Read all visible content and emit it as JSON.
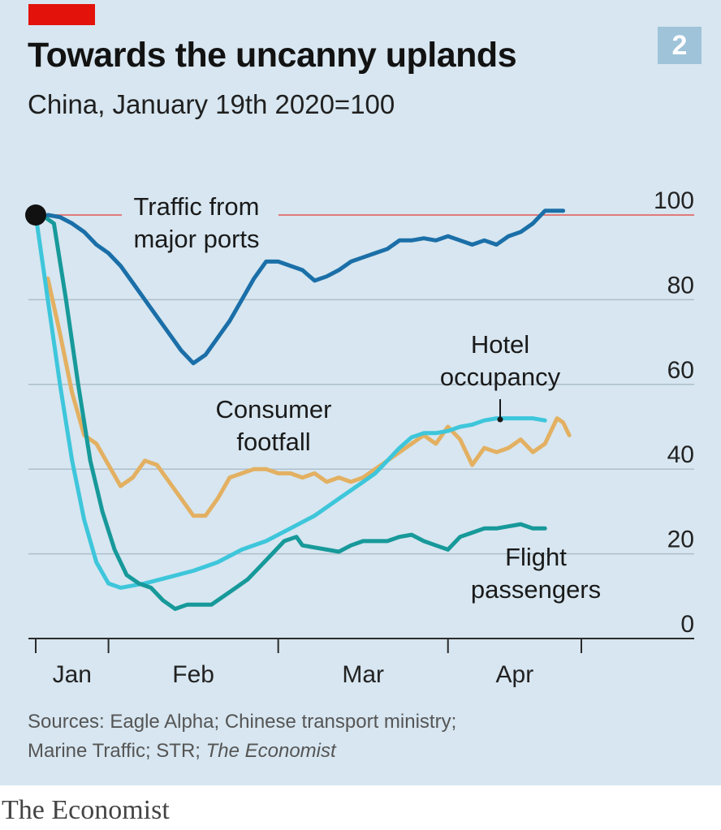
{
  "figure_number": "2",
  "sources": {
    "line1": "Sources: Eagle Alpha; Chinese transport ministry;",
    "line2_prefix": "Marine Traffic; STR; ",
    "line2_italic": "The Economist"
  },
  "footer": "The Economist",
  "colors": {
    "accent_red": "#e3120b",
    "reference_line": "#e07a7a",
    "traffic": "#1b6fa8",
    "consumer": "#e3b062",
    "hotel": "#3ec6db",
    "flight": "#17999a"
  },
  "chart_data": {
    "type": "line",
    "title": "Towards the uncanny uplands",
    "subtitle": "China, January 19th 2020=100",
    "xlabel": "",
    "ylabel": "",
    "ylim": [
      0,
      100
    ],
    "xlim": [
      0,
      90
    ],
    "x_units": "days since January 19th 2020",
    "y_ticks": [
      0,
      20,
      40,
      60,
      80,
      100
    ],
    "x_ticks": [
      0,
      12,
      40,
      68,
      90
    ],
    "x_tick_labels": [
      {
        "label": "Jan",
        "x": 6
      },
      {
        "label": "Feb",
        "x": 26
      },
      {
        "label": "Mar",
        "x": 54
      },
      {
        "label": "Apr",
        "x": 79
      }
    ],
    "reference_line": {
      "y": 100
    },
    "start_marker": {
      "x": 0,
      "y": 100
    },
    "series": [
      {
        "name": "Traffic from major ports",
        "label_lines": [
          "Traffic from",
          "major ports"
        ],
        "color_key": "traffic",
        "points": [
          [
            2,
            100
          ],
          [
            4,
            99.5
          ],
          [
            6,
            98
          ],
          [
            8,
            96
          ],
          [
            10,
            93
          ],
          [
            12,
            91
          ],
          [
            14,
            88
          ],
          [
            16,
            84
          ],
          [
            18,
            80
          ],
          [
            20,
            76
          ],
          [
            22,
            72
          ],
          [
            24,
            68
          ],
          [
            26,
            65
          ],
          [
            28,
            67
          ],
          [
            30,
            71
          ],
          [
            32,
            75
          ],
          [
            34,
            80
          ],
          [
            36,
            85
          ],
          [
            38,
            89
          ],
          [
            40,
            89
          ],
          [
            42,
            88
          ],
          [
            44,
            87
          ],
          [
            46,
            84.5
          ],
          [
            48,
            85.5
          ],
          [
            50,
            87
          ],
          [
            52,
            89
          ],
          [
            54,
            90
          ],
          [
            56,
            91
          ],
          [
            58,
            92
          ],
          [
            60,
            94
          ],
          [
            62,
            94
          ],
          [
            64,
            94.5
          ],
          [
            66,
            94
          ],
          [
            68,
            95
          ],
          [
            70,
            94
          ],
          [
            72,
            93
          ],
          [
            74,
            94
          ],
          [
            76,
            93
          ],
          [
            78,
            95
          ],
          [
            80,
            96
          ],
          [
            82,
            98
          ],
          [
            84,
            101
          ],
          [
            87,
            101
          ]
        ]
      },
      {
        "name": "Consumer footfall",
        "label_lines": [
          "Consumer",
          "footfall"
        ],
        "color_key": "consumer",
        "points": [
          [
            2,
            85
          ],
          [
            4,
            72
          ],
          [
            6,
            58
          ],
          [
            8,
            48
          ],
          [
            10,
            46
          ],
          [
            12,
            41
          ],
          [
            14,
            36
          ],
          [
            16,
            38
          ],
          [
            18,
            42
          ],
          [
            20,
            41
          ],
          [
            22,
            37
          ],
          [
            24,
            33
          ],
          [
            26,
            29
          ],
          [
            28,
            29
          ],
          [
            30,
            33
          ],
          [
            32,
            38
          ],
          [
            34,
            39
          ],
          [
            36,
            40
          ],
          [
            38,
            40
          ],
          [
            40,
            39
          ],
          [
            42,
            39
          ],
          [
            44,
            38
          ],
          [
            46,
            39
          ],
          [
            48,
            37
          ],
          [
            50,
            38
          ],
          [
            52,
            37
          ],
          [
            54,
            38
          ],
          [
            56,
            40
          ],
          [
            58,
            42
          ],
          [
            60,
            44
          ],
          [
            62,
            46
          ],
          [
            64,
            48
          ],
          [
            66,
            46
          ],
          [
            68,
            50
          ],
          [
            70,
            47
          ],
          [
            72,
            41
          ],
          [
            74,
            45
          ],
          [
            76,
            44
          ],
          [
            78,
            45
          ],
          [
            80,
            47
          ],
          [
            82,
            44
          ],
          [
            84,
            46
          ],
          [
            86,
            52
          ],
          [
            87,
            51
          ],
          [
            88,
            48
          ]
        ]
      },
      {
        "name": "Hotel occupancy",
        "label_lines": [
          "Hotel",
          "occupancy"
        ],
        "color_key": "hotel",
        "points": [
          [
            0,
            100
          ],
          [
            2,
            80
          ],
          [
            4,
            60
          ],
          [
            6,
            42
          ],
          [
            8,
            28
          ],
          [
            10,
            18
          ],
          [
            12,
            13
          ],
          [
            14,
            12
          ],
          [
            18,
            13
          ],
          [
            22,
            14.5
          ],
          [
            26,
            16
          ],
          [
            30,
            18
          ],
          [
            34,
            21
          ],
          [
            38,
            23
          ],
          [
            42,
            26
          ],
          [
            46,
            29
          ],
          [
            50,
            33
          ],
          [
            54,
            37
          ],
          [
            56,
            39
          ],
          [
            58,
            42
          ],
          [
            60,
            45
          ],
          [
            62,
            47.5
          ],
          [
            64,
            48.5
          ],
          [
            66,
            48.5
          ],
          [
            68,
            49
          ],
          [
            70,
            50
          ],
          [
            72,
            50.5
          ],
          [
            74,
            51.5
          ],
          [
            76,
            52
          ],
          [
            78,
            52
          ],
          [
            80,
            52
          ],
          [
            82,
            52
          ],
          [
            84,
            51.5
          ]
        ]
      },
      {
        "name": "Flight passengers",
        "label_lines": [
          "Flight",
          "passengers"
        ],
        "color_key": "flight",
        "points": [
          [
            1,
            100
          ],
          [
            3,
            98
          ],
          [
            5,
            80
          ],
          [
            7,
            60
          ],
          [
            9,
            42
          ],
          [
            11,
            30
          ],
          [
            13,
            21
          ],
          [
            15,
            15
          ],
          [
            17,
            13
          ],
          [
            19,
            12
          ],
          [
            21,
            9
          ],
          [
            23,
            7
          ],
          [
            25,
            8
          ],
          [
            27,
            8
          ],
          [
            29,
            8
          ],
          [
            31,
            10
          ],
          [
            33,
            12
          ],
          [
            35,
            14
          ],
          [
            37,
            17
          ],
          [
            39,
            20
          ],
          [
            41,
            23
          ],
          [
            43,
            24
          ],
          [
            44,
            22
          ],
          [
            46,
            21.5
          ],
          [
            48,
            21
          ],
          [
            50,
            20.5
          ],
          [
            52,
            22
          ],
          [
            54,
            23
          ],
          [
            56,
            23
          ],
          [
            58,
            23
          ],
          [
            60,
            24
          ],
          [
            62,
            24.5
          ],
          [
            64,
            23
          ],
          [
            66,
            22
          ],
          [
            68,
            21
          ],
          [
            70,
            24
          ],
          [
            72,
            25
          ],
          [
            74,
            26
          ],
          [
            76,
            26
          ],
          [
            78,
            26.5
          ],
          [
            80,
            27
          ],
          [
            82,
            26
          ],
          [
            84,
            26
          ]
        ]
      }
    ],
    "y_label_position": "right",
    "legend": "inline labels"
  }
}
